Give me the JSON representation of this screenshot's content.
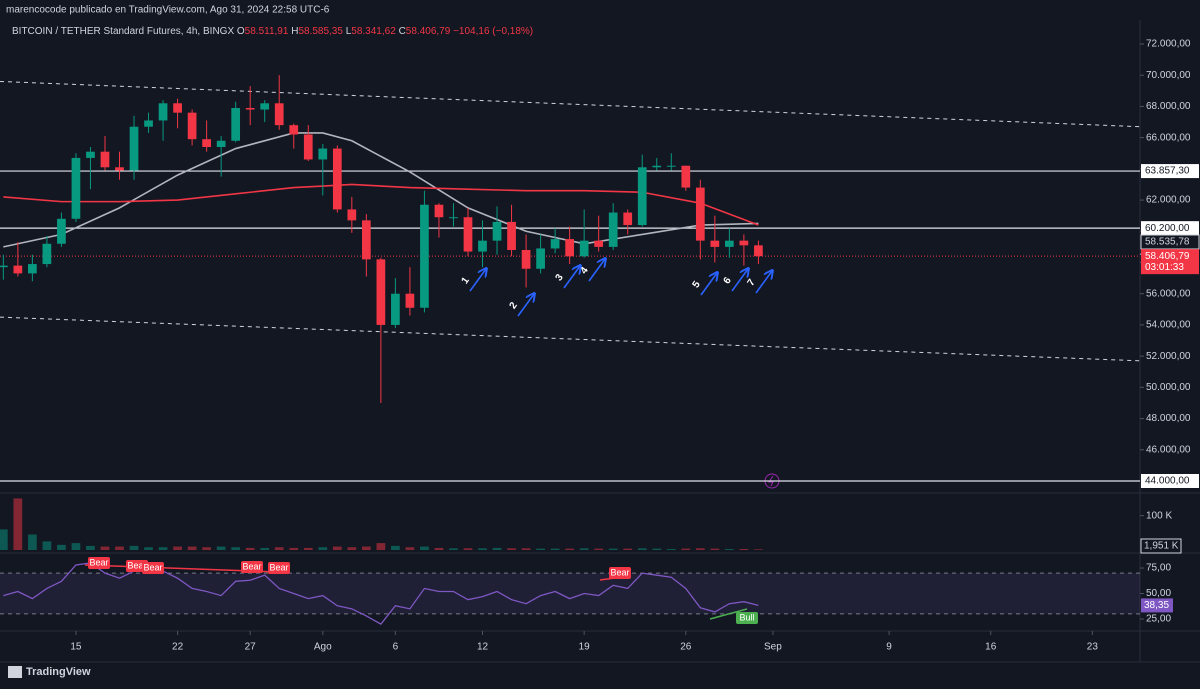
{
  "header": {
    "publisher": "marencocode publicado en TradingView.com, Ago 31, 2024 22:58 UTC-6"
  },
  "legend": {
    "symbol": "BITCOIN / TETHER Standard Futures, 4h, BINGX",
    "o_label": "O",
    "o": "58.511,91",
    "h_label": "H",
    "h": "58.585,35",
    "l_label": "L",
    "l": "58.341,62",
    "c_label": "C",
    "c": "58.406,79",
    "change": "−104,16 (−0,18%)"
  },
  "chart_data": {
    "type": "candlestick",
    "x": [
      10,
      11,
      12,
      13,
      14,
      15,
      16,
      17,
      18,
      19,
      20,
      21,
      22,
      23,
      24,
      25,
      26,
      27,
      28,
      29,
      30,
      31,
      32,
      33,
      34,
      35,
      36,
      37,
      38,
      39,
      40,
      41,
      42,
      43,
      44,
      45,
      46,
      47,
      48,
      49,
      50,
      51,
      52,
      53,
      54,
      55,
      56,
      57,
      58,
      59,
      60,
      61,
      62
    ],
    "ohlc": [
      [
        57700,
        58500,
        56900,
        57800
      ],
      [
        57800,
        59300,
        57100,
        57300
      ],
      [
        57300,
        58500,
        56800,
        57900
      ],
      [
        57900,
        59700,
        57700,
        59200
      ],
      [
        59200,
        61200,
        59000,
        60800
      ],
      [
        60800,
        65000,
        60600,
        64700
      ],
      [
        64700,
        65400,
        62700,
        65100
      ],
      [
        65100,
        66100,
        63900,
        64100
      ],
      [
        64100,
        65100,
        63300,
        63900
      ],
      [
        63900,
        67400,
        63300,
        66700
      ],
      [
        66700,
        67600,
        66300,
        67100
      ],
      [
        67100,
        68400,
        65800,
        68200
      ],
      [
        68200,
        68500,
        66600,
        67600
      ],
      [
        67600,
        67800,
        65500,
        65900
      ],
      [
        65900,
        67100,
        65100,
        65400
      ],
      [
        65400,
        66100,
        63500,
        65800
      ],
      [
        65800,
        68300,
        65700,
        67900
      ],
      [
        67900,
        69300,
        66800,
        67800
      ],
      [
        67800,
        68400,
        67000,
        68200
      ],
      [
        68200,
        70000,
        66500,
        66800
      ],
      [
        66800,
        66900,
        65300,
        66200
      ],
      [
        66200,
        66800,
        64500,
        64600
      ],
      [
        64600,
        65600,
        62300,
        65300
      ],
      [
        65300,
        65500,
        61200,
        61400
      ],
      [
        61400,
        62200,
        59900,
        60700
      ],
      [
        60700,
        61100,
        57100,
        58200
      ],
      [
        58200,
        58300,
        49000,
        54000
      ],
      [
        54000,
        57000,
        53800,
        56000
      ],
      [
        56000,
        57700,
        54600,
        55100
      ],
      [
        55100,
        62600,
        54800,
        61700
      ],
      [
        61700,
        61800,
        59600,
        60900
      ],
      [
        60900,
        61800,
        60300,
        60900
      ],
      [
        60900,
        61500,
        58400,
        58700
      ],
      [
        58700,
        60700,
        57700,
        59400
      ],
      [
        59400,
        61600,
        58500,
        60600
      ],
      [
        60600,
        61700,
        58400,
        58800
      ],
      [
        58800,
        59800,
        56400,
        57600
      ],
      [
        57600,
        59800,
        57300,
        58900
      ],
      [
        58900,
        60200,
        58600,
        59500
      ],
      [
        59500,
        60300,
        57900,
        58400
      ],
      [
        58400,
        61400,
        58300,
        59400
      ],
      [
        59400,
        61000,
        58700,
        59000
      ],
      [
        59000,
        61800,
        58800,
        61200
      ],
      [
        61200,
        61400,
        59800,
        60400
      ],
      [
        60400,
        64900,
        60300,
        64100
      ],
      [
        64100,
        64700,
        63900,
        64200
      ],
      [
        64200,
        65000,
        63900,
        64200
      ],
      [
        64200,
        64200,
        62600,
        62800
      ],
      [
        62800,
        63300,
        58200,
        59400
      ],
      [
        59400,
        61000,
        58000,
        59000
      ],
      [
        59000,
        60200,
        58300,
        59400
      ],
      [
        59400,
        59800,
        57800,
        59100
      ],
      [
        59100,
        59400,
        57900,
        58406.79
      ]
    ],
    "up_color": "#089981",
    "down_color": "#f23645",
    "xlim": [
      9.77,
      88.28
    ],
    "xticks": [
      15,
      22,
      27,
      {
        "value": 32,
        "label": "Ago"
      },
      {
        "value": 37,
        "label": "6"
      },
      {
        "value": 43,
        "label": "12"
      },
      {
        "value": 50,
        "label": "19"
      },
      {
        "value": 57,
        "label": "26"
      },
      {
        "value": 63,
        "label": "Sep"
      },
      {
        "value": 71,
        "label": "9"
      },
      {
        "value": 78,
        "label": "16"
      },
      {
        "value": 85,
        "label": "23"
      }
    ],
    "ylim": [
      43295,
      72384
    ],
    "yticks": [
      {
        "value": 46000,
        "label": "46.000,00"
      },
      {
        "value": 48000,
        "label": "48.000,00"
      },
      {
        "value": 50000,
        "label": "50.000,00"
      },
      {
        "value": 52000,
        "label": "52.000,00"
      },
      {
        "value": 54000,
        "label": "54.000,00"
      },
      {
        "value": 56000,
        "label": "56.000,00"
      },
      {
        "value": 58000,
        "label": "58.000,00"
      },
      {
        "value": 60000,
        "label": "60.000,00"
      },
      {
        "value": 62000,
        "label": "62.000,00"
      },
      {
        "value": 64000,
        "label": "64.000,00"
      },
      {
        "value": 66000,
        "label": "66.000,00"
      },
      {
        "value": 68000,
        "label": "68.000,00"
      },
      {
        "value": 70000,
        "label": "70.000,00"
      },
      {
        "value": 72000,
        "label": "72.000,00"
      }
    ],
    "moving_averages": [
      {
        "color": "#b2b5be",
        "x": [
          10,
          14,
          18,
          22,
          26,
          30,
          32,
          34,
          38,
          42,
          46,
          50,
          54,
          58,
          62
        ],
        "values": [
          59000,
          59800,
          61500,
          63600,
          65300,
          66300,
          66300,
          65800,
          63800,
          61500,
          60000,
          59200,
          59800,
          60400,
          60500
        ]
      },
      {
        "color": "#f23645",
        "x": [
          10,
          14,
          18,
          22,
          26,
          30,
          32,
          34,
          38,
          42,
          46,
          50,
          54,
          58,
          62
        ],
        "values": [
          62200,
          61900,
          61900,
          62000,
          62400,
          62800,
          62900,
          63000,
          62800,
          62700,
          62600,
          62600,
          62500,
          61800,
          60400
        ]
      }
    ],
    "trendlines": [
      {
        "x": [
          9.77,
          88.28
        ],
        "values": [
          69600,
          66700
        ]
      },
      {
        "x": [
          9.77,
          88.28
        ],
        "values": [
          54500,
          51700
        ]
      }
    ],
    "levels": [
      {
        "value": 63857.3,
        "label": "63.857,30"
      },
      {
        "value": 60200,
        "label": "60.200,00"
      },
      {
        "value": 44000,
        "label": "44.000,00"
      }
    ],
    "marker_price": {
      "value": 58535.78,
      "label": "58.535,78"
    },
    "last_price": {
      "value": 58406.79,
      "label": "58.406,79",
      "countdown": "03:01:33"
    },
    "annotations": [
      "1",
      "2",
      "3",
      "4",
      "5",
      "6",
      "7"
    ],
    "volume": {
      "values": [
        60,
        150,
        45,
        25,
        15,
        20,
        12,
        10,
        10,
        12,
        8,
        8,
        10,
        10,
        8,
        10,
        8,
        6,
        6,
        8,
        6,
        6,
        8,
        10,
        8,
        10,
        20,
        12,
        8,
        10,
        6,
        5,
        5,
        5,
        6,
        5,
        5,
        4,
        4,
        4,
        5,
        4,
        4,
        4,
        5,
        4,
        3,
        4,
        5,
        4,
        3,
        3,
        1.951
      ],
      "last_value_label": "1,951 K",
      "ylim": [
        0,
        160
      ],
      "yticks": [
        {
          "value": 100,
          "label": "100 K"
        }
      ]
    },
    "rsi": {
      "color": "#7e57c2",
      "values": [
        48,
        52,
        45,
        55,
        62,
        78,
        80,
        70,
        65,
        72,
        74,
        72,
        65,
        55,
        52,
        48,
        62,
        63,
        68,
        55,
        50,
        45,
        48,
        38,
        35,
        28,
        20,
        38,
        35,
        55,
        52,
        52,
        44,
        47,
        52,
        44,
        40,
        48,
        52,
        45,
        50,
        48,
        58,
        55,
        70,
        68,
        66,
        55,
        36,
        32,
        40,
        42,
        38.35
      ],
      "last_value_label": "38,35",
      "ylim": [
        16.2,
        86.8
      ],
      "yticks": [
        {
          "value": 75,
          "label": "75,00"
        },
        {
          "value": 50,
          "label": "50,00"
        },
        {
          "value": 25,
          "label": "25,00"
        }
      ],
      "band": [
        30,
        70
      ],
      "signals": [
        "Bear",
        "Bear",
        "Bear",
        "Bear",
        "Bear",
        "Bear",
        "Bull"
      ]
    }
  },
  "footer": {
    "brand": "TradingView"
  }
}
